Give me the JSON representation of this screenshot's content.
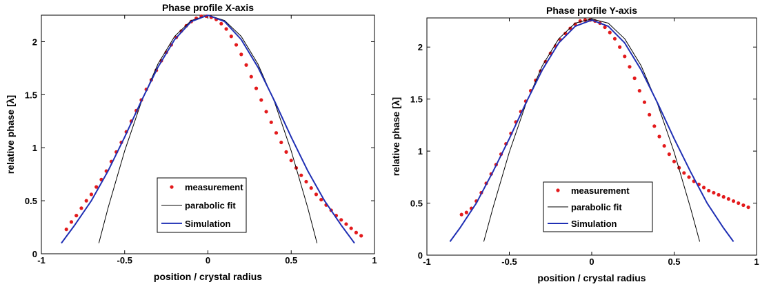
{
  "chart_data": [
    {
      "type": "line",
      "title": "Phase profile X-axis",
      "xlabel": "position / crystal radius",
      "ylabel": "relative phase [λ]",
      "xlim": [
        -1,
        1
      ],
      "ylim": [
        0,
        2.25
      ],
      "xticks": [
        -1,
        -0.5,
        0,
        0.5,
        1
      ],
      "xtick_labels": [
        "-1",
        "-0.5",
        "0",
        "0.5",
        "1"
      ],
      "yticks": [
        0,
        0.5,
        1,
        1.5,
        2
      ],
      "ytick_labels": [
        "0",
        "0.5",
        "1",
        "1.5",
        "2"
      ],
      "grid": false,
      "legend_position": "bottom-center",
      "series": [
        {
          "name": "measurement",
          "kind": "scatter",
          "color": "#e31a1c",
          "x": [
            -0.85,
            -0.82,
            -0.79,
            -0.76,
            -0.73,
            -0.7,
            -0.67,
            -0.64,
            -0.61,
            -0.58,
            -0.55,
            -0.52,
            -0.49,
            -0.46,
            -0.43,
            -0.4,
            -0.37,
            -0.34,
            -0.31,
            -0.28,
            -0.25,
            -0.22,
            -0.19,
            -0.16,
            -0.13,
            -0.1,
            -0.07,
            -0.04,
            -0.01,
            0.02,
            0.05,
            0.08,
            0.11,
            0.14,
            0.17,
            0.2,
            0.23,
            0.26,
            0.29,
            0.32,
            0.35,
            0.38,
            0.41,
            0.44,
            0.47,
            0.5,
            0.53,
            0.56,
            0.59,
            0.62,
            0.65,
            0.68,
            0.71,
            0.74,
            0.77,
            0.8,
            0.83,
            0.86,
            0.89,
            0.92
          ],
          "y": [
            0.23,
            0.3,
            0.36,
            0.43,
            0.5,
            0.56,
            0.63,
            0.7,
            0.78,
            0.87,
            0.96,
            1.05,
            1.15,
            1.25,
            1.35,
            1.45,
            1.55,
            1.64,
            1.73,
            1.82,
            1.9,
            1.97,
            2.04,
            2.1,
            2.15,
            2.19,
            2.22,
            2.24,
            2.24,
            2.23,
            2.21,
            2.17,
            2.12,
            2.05,
            1.97,
            1.88,
            1.78,
            1.67,
            1.56,
            1.45,
            1.34,
            1.24,
            1.14,
            1.05,
            0.96,
            0.88,
            0.81,
            0.74,
            0.68,
            0.62,
            0.56,
            0.51,
            0.46,
            0.41,
            0.36,
            0.32,
            0.28,
            0.24,
            0.2,
            0.17
          ]
        },
        {
          "name": "parabolic fit",
          "kind": "line",
          "color": "#000000",
          "x": [
            -0.655,
            -0.6,
            -0.5,
            -0.4,
            -0.3,
            -0.2,
            -0.1,
            0,
            0.1,
            0.2,
            0.3,
            0.4,
            0.5,
            0.6,
            0.655
          ],
          "y": [
            0.1,
            0.43,
            0.97,
            1.43,
            1.79,
            2.05,
            2.2,
            2.25,
            2.2,
            2.05,
            1.79,
            1.43,
            0.97,
            0.43,
            0.1
          ]
        },
        {
          "name": "Simulation",
          "kind": "line",
          "color": "#1f2fb4",
          "x": [
            -0.88,
            -0.8,
            -0.7,
            -0.6,
            -0.5,
            -0.4,
            -0.3,
            -0.2,
            -0.1,
            0,
            0.1,
            0.2,
            0.3,
            0.4,
            0.5,
            0.6,
            0.7,
            0.8,
            0.88
          ],
          "y": [
            0.1,
            0.27,
            0.5,
            0.78,
            1.1,
            1.44,
            1.76,
            2.02,
            2.19,
            2.25,
            2.19,
            2.02,
            1.76,
            1.44,
            1.1,
            0.78,
            0.5,
            0.27,
            0.1
          ]
        }
      ]
    },
    {
      "type": "line",
      "title": "Phase profile Y-axis",
      "xlabel": "position / crystal radius",
      "ylabel": "relative phase [λ]",
      "xlim": [
        -1,
        1
      ],
      "ylim": [
        0,
        2.28
      ],
      "xticks": [
        -1,
        -0.5,
        0,
        0.5,
        1
      ],
      "xtick_labels": [
        "-1",
        "-0.5",
        "0",
        "0.5",
        "1"
      ],
      "yticks": [
        0,
        0.5,
        1,
        1.5,
        2
      ],
      "ytick_labels": [
        "0",
        "0.5",
        "1",
        "1.5",
        "2"
      ],
      "grid": false,
      "legend_position": "bottom-right",
      "series": [
        {
          "name": "measurement",
          "kind": "scatter",
          "color": "#e31a1c",
          "x": [
            -0.79,
            -0.76,
            -0.73,
            -0.7,
            -0.67,
            -0.64,
            -0.61,
            -0.58,
            -0.55,
            -0.52,
            -0.49,
            -0.46,
            -0.43,
            -0.4,
            -0.37,
            -0.34,
            -0.31,
            -0.28,
            -0.25,
            -0.22,
            -0.19,
            -0.16,
            -0.13,
            -0.1,
            -0.07,
            -0.04,
            -0.01,
            0.02,
            0.05,
            0.08,
            0.11,
            0.14,
            0.17,
            0.2,
            0.23,
            0.26,
            0.29,
            0.32,
            0.35,
            0.38,
            0.41,
            0.44,
            0.47,
            0.5,
            0.53,
            0.56,
            0.59,
            0.62,
            0.65,
            0.68,
            0.71,
            0.74,
            0.77,
            0.8,
            0.83,
            0.86,
            0.89,
            0.92,
            0.95
          ],
          "y": [
            0.39,
            0.41,
            0.45,
            0.52,
            0.6,
            0.69,
            0.78,
            0.87,
            0.97,
            1.07,
            1.17,
            1.28,
            1.38,
            1.48,
            1.58,
            1.68,
            1.77,
            1.86,
            1.94,
            2.01,
            2.07,
            2.13,
            2.18,
            2.22,
            2.25,
            2.26,
            2.26,
            2.25,
            2.23,
            2.19,
            2.14,
            2.08,
            2.0,
            1.91,
            1.81,
            1.7,
            1.58,
            1.47,
            1.35,
            1.24,
            1.14,
            1.05,
            0.97,
            0.9,
            0.84,
            0.79,
            0.75,
            0.71,
            0.68,
            0.65,
            0.62,
            0.6,
            0.58,
            0.56,
            0.54,
            0.52,
            0.5,
            0.48,
            0.46
          ]
        },
        {
          "name": "parabolic fit",
          "kind": "line",
          "color": "#000000",
          "x": [
            -0.655,
            -0.6,
            -0.5,
            -0.4,
            -0.3,
            -0.2,
            -0.1,
            0,
            0.1,
            0.2,
            0.3,
            0.4,
            0.5,
            0.6,
            0.655
          ],
          "y": [
            0.13,
            0.45,
            0.99,
            1.45,
            1.82,
            2.08,
            2.23,
            2.27,
            2.23,
            2.08,
            1.82,
            1.45,
            0.99,
            0.45,
            0.13
          ]
        },
        {
          "name": "Simulation",
          "kind": "line",
          "color": "#1f2fb4",
          "x": [
            -0.86,
            -0.8,
            -0.7,
            -0.6,
            -0.5,
            -0.4,
            -0.3,
            -0.2,
            -0.1,
            0,
            0.1,
            0.2,
            0.3,
            0.4,
            0.5,
            0.6,
            0.7,
            0.8,
            0.86
          ],
          "y": [
            0.13,
            0.26,
            0.5,
            0.8,
            1.12,
            1.46,
            1.78,
            2.04,
            2.2,
            2.26,
            2.2,
            2.04,
            1.78,
            1.46,
            1.12,
            0.8,
            0.5,
            0.26,
            0.13
          ]
        }
      ]
    }
  ]
}
